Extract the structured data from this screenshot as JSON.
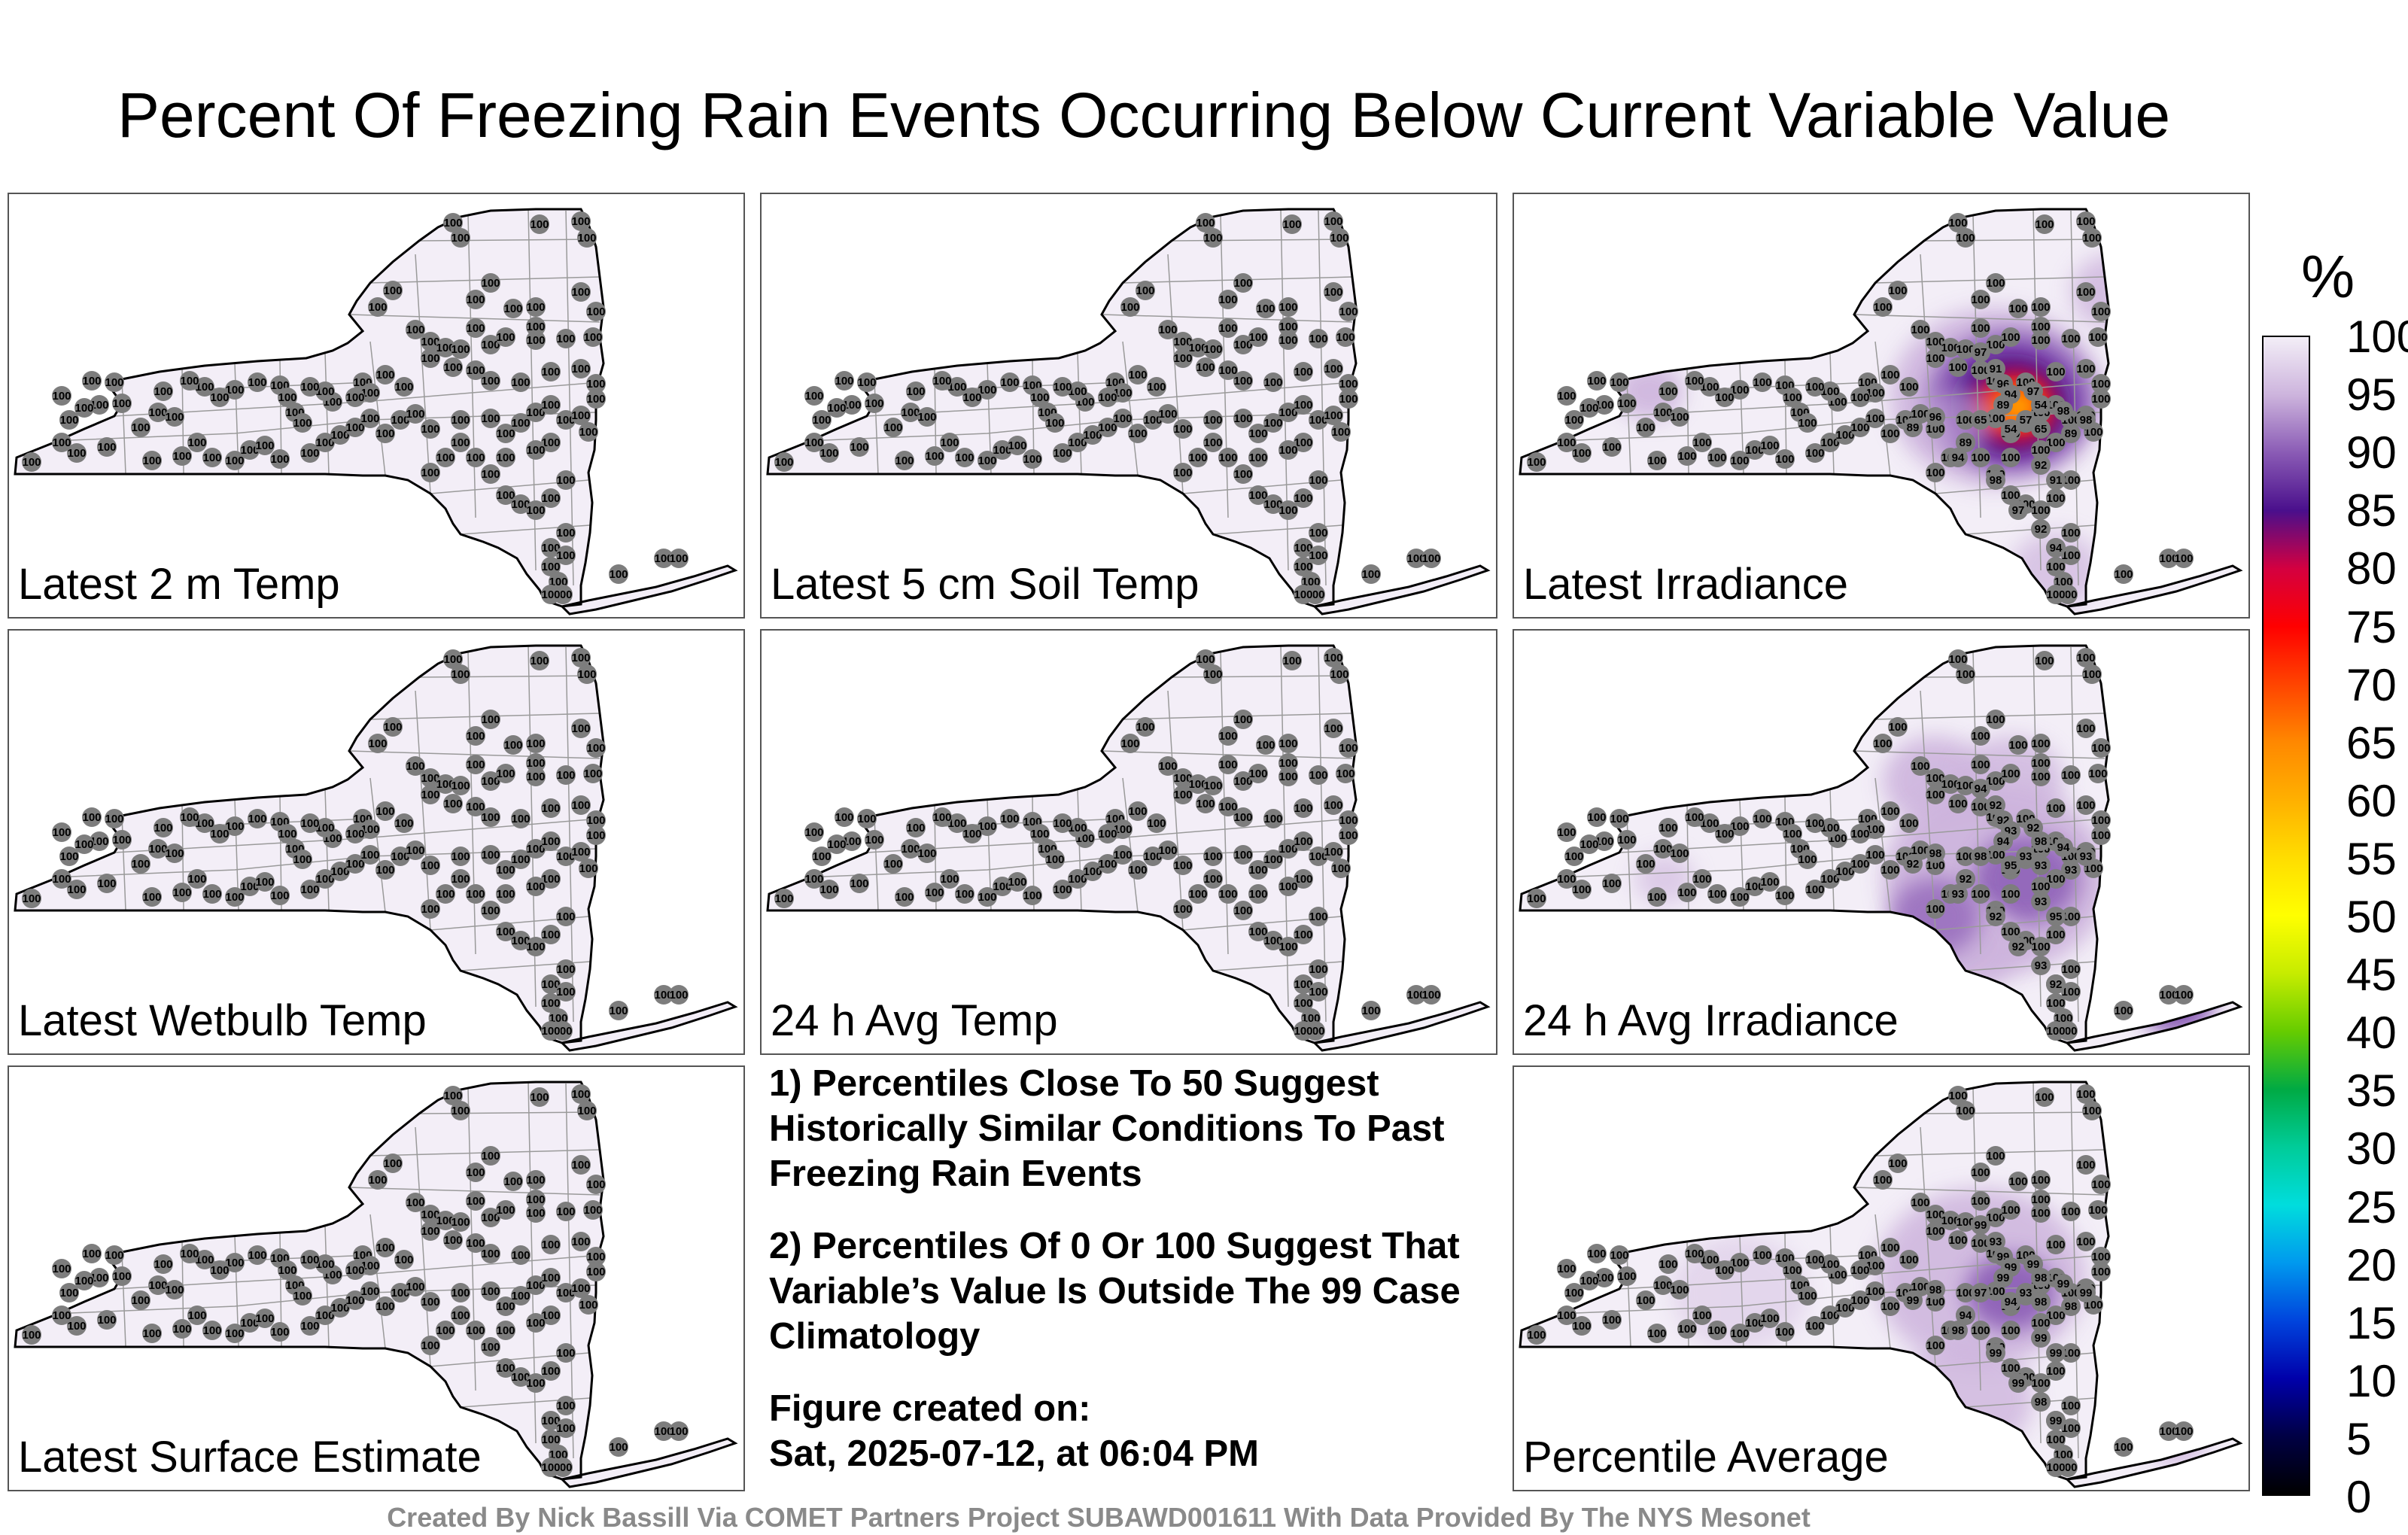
{
  "title": "Percent Of Freezing Rain Events Occurring Below Current Variable Value",
  "panels": [
    {
      "label": "Latest 2 m Temp",
      "highlight": "none",
      "highlight_values": []
    },
    {
      "label": "Latest 5 cm Soil Temp",
      "highlight": "none",
      "highlight_values": []
    },
    {
      "label": "Latest Irradiance",
      "highlight": "irradiance",
      "highlight_values": [
        "97",
        "96",
        "94",
        "97",
        "89",
        "54",
        "57",
        "54",
        "65",
        "91",
        "98",
        "89",
        "65",
        "89",
        "94",
        "92",
        "91",
        "98",
        "97",
        "92",
        "94",
        "98",
        "96",
        "89"
      ]
    },
    {
      "label": "Latest Wetbulb Temp",
      "highlight": "none",
      "highlight_values": []
    },
    {
      "label": "24 h Avg Temp",
      "highlight": "none",
      "highlight_values": []
    },
    {
      "label": "24 h Avg Irradiance",
      "highlight": "avg",
      "highlight_values": [
        "94",
        "92",
        "93",
        "92",
        "94",
        "98",
        "93",
        "95",
        "93",
        "92",
        "94",
        "93",
        "98",
        "92",
        "93",
        "93",
        "95",
        "92",
        "92",
        "93",
        "92",
        "93",
        "98",
        "92"
      ]
    },
    {
      "label": "Latest Surface Estimate",
      "highlight": "none",
      "highlight_values": []
    },
    null,
    {
      "label": "Percentile Average",
      "highlight": "average",
      "highlight_values": [
        "99",
        "99",
        "99",
        "99",
        "99",
        "98",
        "93",
        "94",
        "98",
        "93",
        "99",
        "98",
        "97",
        "94",
        "98",
        "99",
        "99",
        "99",
        "99",
        "98",
        "99",
        "99",
        "98",
        "99"
      ]
    }
  ],
  "default_value": "100",
  "notes": {
    "note1": "1) Percentiles Close To 50 Suggest Historically Similar Conditions To Past Freezing Rain Events",
    "note2": "2) Percentiles Of 0 Or 100 Suggest That Variable’s Value Is Outside The 99 Case Climatology",
    "created_label": "Figure created on:",
    "created_date": "Sat, 2025-07-12, at 06:04 PM"
  },
  "colorbar": {
    "unit": "%",
    "ticks": [
      "100",
      "95",
      "90",
      "85",
      "80",
      "75",
      "70",
      "65",
      "60",
      "55",
      "50",
      "45",
      "40",
      "35",
      "30",
      "25",
      "20",
      "15",
      "10",
      "5",
      "0"
    ],
    "colors": [
      "#f3eef7",
      "#cdb4dd",
      "#8a5bb5",
      "#4a0f8c",
      "#d40040",
      "#ff0000",
      "#ff4400",
      "#ff8800",
      "#ffb000",
      "#ffdd00",
      "#ffff00",
      "#c6ec00",
      "#66cc00",
      "#00aa44",
      "#00cc99",
      "#00dddd",
      "#0099ee",
      "#0044dd",
      "#0000aa",
      "#000044",
      "#000000"
    ]
  },
  "credit": "Created By Nick Bassill Via COMET Partners Project SUBAWD001611 With Data Provided By The NYS Mesonet"
}
